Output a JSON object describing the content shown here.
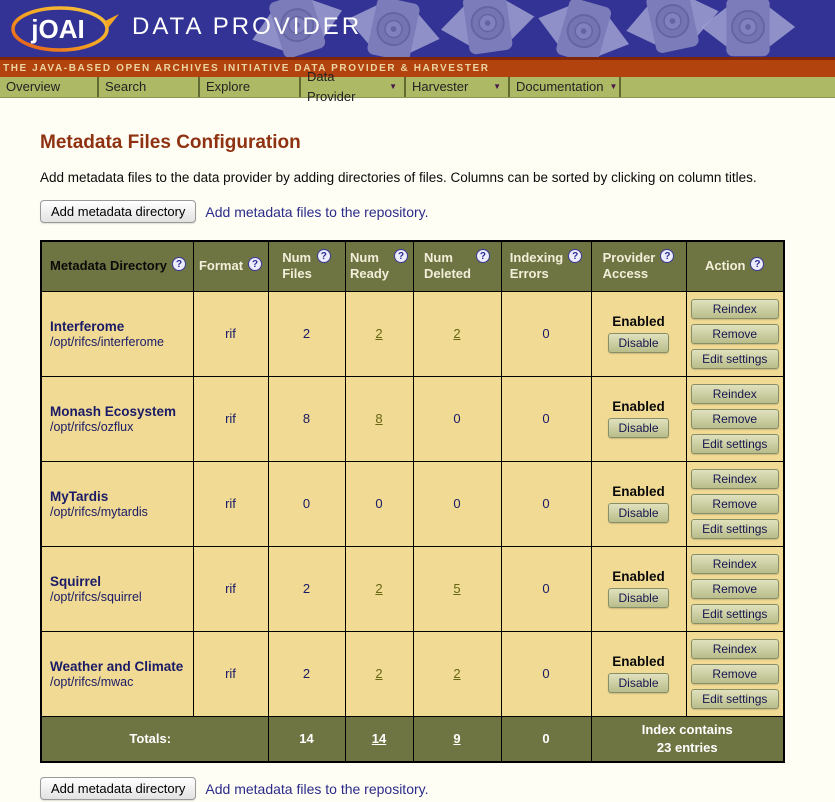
{
  "header": {
    "logo_text": "jOAI",
    "app_title": "DATA PROVIDER",
    "tagline": "THE JAVA-BASED OPEN ARCHIVES INITIATIVE DATA PROVIDER & HARVESTER"
  },
  "nav": {
    "items": [
      {
        "label": "Overview",
        "has_menu": false
      },
      {
        "label": "Search",
        "has_menu": false
      },
      {
        "label": "Explore",
        "has_menu": false
      },
      {
        "label": "Data Provider",
        "has_menu": true
      },
      {
        "label": "Harvester",
        "has_menu": true
      },
      {
        "label": "Documentation",
        "has_menu": true
      }
    ]
  },
  "icons": {
    "help": "?",
    "dropdown_arrow": "▼"
  },
  "page": {
    "title": "Metadata Files Configuration",
    "intro": "Add metadata files to the data provider by adding directories of files. Columns can be sorted by clicking on column titles.",
    "add_button_label": "Add metadata directory",
    "add_caption": "Add metadata files to the repository."
  },
  "table": {
    "columns": [
      {
        "label": "Metadata Directory",
        "sorted": true
      },
      {
        "label": "Format",
        "sorted": false
      },
      {
        "label": "Num\nFiles",
        "sorted": false
      },
      {
        "label": "Num\nReady",
        "sorted": false
      },
      {
        "label": "Num\nDeleted",
        "sorted": false
      },
      {
        "label": "Indexing\nErrors",
        "sorted": false
      },
      {
        "label": "Provider\nAccess",
        "sorted": false
      },
      {
        "label": "Action",
        "sorted": false
      }
    ],
    "rows": [
      {
        "name": "Interferome",
        "path": "/opt/rifcs/interferome",
        "format": "rif",
        "num_files": "2",
        "num_ready": {
          "text": "2",
          "link": true
        },
        "num_deleted": {
          "text": "2",
          "link": true
        },
        "indexing_errors": "0",
        "access_status": "Enabled",
        "access_button": "Disable",
        "actions": [
          "Reindex",
          "Remove",
          "Edit settings"
        ]
      },
      {
        "name": "Monash Ecosystem",
        "path": "/opt/rifcs/ozflux",
        "format": "rif",
        "num_files": "8",
        "num_ready": {
          "text": "8",
          "link": true
        },
        "num_deleted": {
          "text": "0",
          "link": false
        },
        "indexing_errors": "0",
        "access_status": "Enabled",
        "access_button": "Disable",
        "actions": [
          "Reindex",
          "Remove",
          "Edit settings"
        ]
      },
      {
        "name": "MyTardis",
        "path": "/opt/rifcs/mytardis",
        "format": "rif",
        "num_files": "0",
        "num_ready": {
          "text": "0",
          "link": false
        },
        "num_deleted": {
          "text": "0",
          "link": false
        },
        "indexing_errors": "0",
        "access_status": "Enabled",
        "access_button": "Disable",
        "actions": [
          "Reindex",
          "Remove",
          "Edit settings"
        ]
      },
      {
        "name": "Squirrel",
        "path": "/opt/rifcs/squirrel",
        "format": "rif",
        "num_files": "2",
        "num_ready": {
          "text": "2",
          "link": true
        },
        "num_deleted": {
          "text": "5",
          "link": true
        },
        "indexing_errors": "0",
        "access_status": "Enabled",
        "access_button": "Disable",
        "actions": [
          "Reindex",
          "Remove",
          "Edit settings"
        ]
      },
      {
        "name": "Weather and Climate",
        "path": "/opt/rifcs/mwac",
        "format": "rif",
        "num_files": "2",
        "num_ready": {
          "text": "2",
          "link": true
        },
        "num_deleted": {
          "text": "2",
          "link": true
        },
        "indexing_errors": "0",
        "access_status": "Enabled",
        "access_button": "Disable",
        "actions": [
          "Reindex",
          "Remove",
          "Edit settings"
        ]
      }
    ],
    "totals": {
      "label": "Totals:",
      "num_files": "14",
      "num_ready": "14",
      "num_deleted": "9",
      "indexing_errors": "0",
      "index_note": "Index contains\n23 entries"
    }
  },
  "colors": {
    "header_bg": "#333395",
    "banner_bg": "#B2430F",
    "nav_bg": "#ADB965",
    "table_header_bg": "#6F7542",
    "cell_bg": "#F0DA94",
    "title_text": "#8E3211",
    "navy_text": "#1A1A66",
    "link_olive": "#666611",
    "caption_navy": "#2B2B8A"
  }
}
